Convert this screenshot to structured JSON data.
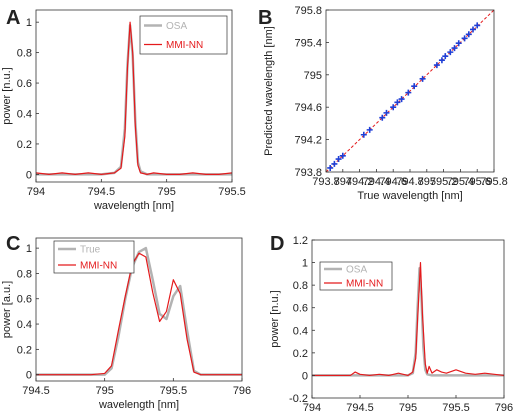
{
  "colors": {
    "osa": "#b3b3b3",
    "nn": "#e41a1c",
    "marker": "#1f3fd6",
    "fit": "#e41a1c"
  },
  "chart_data": [
    {
      "panel": "A",
      "type": "line",
      "xlabel": "wavelength [nm]",
      "ylabel": "power [n.u.]",
      "xlim": [
        794,
        795.5
      ],
      "ylim": [
        -0.05,
        1.08
      ],
      "xticks": [
        794,
        794.5,
        795,
        795.5
      ],
      "xtick_labels": [
        "794",
        "794.5",
        "795",
        "795.5"
      ],
      "yticks": [
        0,
        0.2,
        0.4,
        0.6,
        0.8,
        1
      ],
      "ytick_labels": [
        "0",
        "0.2",
        "0.4",
        "0.6",
        "0.8",
        "1"
      ],
      "legend": {
        "placement": "top-right",
        "entries": [
          "OSA",
          "MMI-NN"
        ]
      },
      "series": [
        {
          "name": "OSA",
          "color": "#b3b3b3",
          "width": 2.5,
          "x": [
            794,
            794.1,
            794.2,
            794.3,
            794.4,
            794.5,
            794.6,
            794.65,
            794.68,
            794.7,
            794.72,
            794.74,
            794.76,
            794.78,
            794.8,
            794.85,
            794.9,
            795,
            795.1,
            795.2,
            795.3,
            795.4,
            795.5
          ],
          "y": [
            0,
            0,
            0,
            0,
            0,
            0,
            0.01,
            0.05,
            0.3,
            0.72,
            0.98,
            0.78,
            0.35,
            0.08,
            0.02,
            0,
            0,
            0,
            0,
            0,
            0,
            0,
            0
          ]
        },
        {
          "name": "MMI-NN",
          "color": "#e41a1c",
          "width": 1.2,
          "x": [
            794,
            794.1,
            794.2,
            794.3,
            794.4,
            794.5,
            794.6,
            794.65,
            794.68,
            794.7,
            794.72,
            794.74,
            794.76,
            794.78,
            794.8,
            794.85,
            794.9,
            795,
            795.1,
            795.2,
            795.3,
            795.4,
            795.5
          ],
          "y": [
            0.01,
            0,
            0.01,
            0,
            0.01,
            0,
            0.01,
            0.04,
            0.25,
            0.7,
            1.0,
            0.8,
            0.32,
            0.06,
            0.01,
            0,
            0.01,
            0,
            0,
            0.01,
            0,
            0,
            0.01
          ]
        }
      ]
    },
    {
      "panel": "B",
      "type": "scatter",
      "xlabel": "True wavelength [nm]",
      "ylabel": "Predicted wavelength [nm]",
      "xlim": [
        793.8,
        795.8
      ],
      "ylim": [
        793.8,
        795.8
      ],
      "xticks": [
        793.8,
        794,
        794.2,
        794.4,
        794.6,
        794.8,
        795,
        795.2,
        795.4,
        795.6,
        795.8
      ],
      "xtick_labels": [
        "793.8",
        "794",
        "794.2",
        "794.4",
        "794.6",
        "794.8",
        "795",
        "795.2",
        "795.4",
        "795.6",
        "795.8"
      ],
      "yticks": [
        793.8,
        794.2,
        794.6,
        795,
        795.4,
        795.8
      ],
      "ytick_labels": [
        "793.8",
        "794.2",
        "794.6",
        "795",
        "795.4",
        "795.8"
      ],
      "fit_line": {
        "x": [
          793.8,
          795.8
        ],
        "y": [
          793.8,
          795.8
        ]
      },
      "points": {
        "x": [
          793.85,
          793.9,
          793.95,
          794.0,
          794.25,
          794.32,
          794.47,
          794.52,
          794.6,
          794.65,
          794.7,
          794.78,
          794.85,
          794.95,
          795.12,
          795.18,
          795.22,
          795.28,
          795.33,
          795.38,
          795.45,
          795.5,
          795.55,
          795.6
        ],
        "y": [
          793.85,
          793.9,
          793.96,
          794.0,
          794.26,
          794.32,
          794.47,
          794.53,
          794.6,
          794.66,
          794.7,
          794.78,
          794.86,
          794.95,
          795.12,
          795.18,
          795.23,
          795.28,
          795.33,
          795.39,
          795.45,
          795.5,
          795.56,
          795.61
        ]
      }
    },
    {
      "panel": "C",
      "type": "line",
      "xlabel": "wavelength [nm]",
      "ylabel": "power [a.u.]",
      "xlim": [
        794.5,
        796
      ],
      "ylim": [
        -0.05,
        1.08
      ],
      "xticks": [
        794.5,
        795,
        795.5,
        796
      ],
      "xtick_labels": [
        "794.5",
        "795",
        "795.5",
        "796"
      ],
      "yticks": [
        0,
        0.2,
        0.4,
        0.6,
        0.8,
        1
      ],
      "ytick_labels": [
        "0",
        "0.2",
        "0.4",
        "0.6",
        "0.8",
        "1"
      ],
      "legend": {
        "placement": "top-left",
        "entries": [
          "True",
          "MMI-NN"
        ]
      },
      "series": [
        {
          "name": "True",
          "color": "#b3b3b3",
          "width": 2.5,
          "x": [
            794.5,
            794.6,
            794.7,
            794.8,
            794.9,
            795.0,
            795.05,
            795.1,
            795.15,
            795.2,
            795.25,
            795.3,
            795.35,
            795.4,
            795.45,
            795.5,
            795.55,
            795.6,
            795.65,
            795.7,
            795.8,
            795.9,
            796
          ],
          "y": [
            0,
            0,
            0,
            0,
            0,
            0,
            0.05,
            0.3,
            0.6,
            0.85,
            0.97,
            1.0,
            0.75,
            0.48,
            0.44,
            0.62,
            0.7,
            0.35,
            0.03,
            0,
            0,
            0,
            0
          ]
        },
        {
          "name": "MMI-NN",
          "color": "#e41a1c",
          "width": 1.2,
          "x": [
            794.5,
            794.6,
            794.7,
            794.8,
            794.9,
            795.0,
            795.05,
            795.1,
            795.15,
            795.2,
            795.25,
            795.3,
            795.35,
            795.4,
            795.45,
            795.5,
            795.55,
            795.6,
            795.65,
            795.7,
            795.8,
            795.9,
            796
          ],
          "y": [
            0,
            0,
            0,
            0,
            0,
            0.01,
            0.07,
            0.35,
            0.62,
            0.87,
            0.96,
            0.93,
            0.65,
            0.42,
            0.5,
            0.75,
            0.64,
            0.28,
            0.02,
            0,
            0,
            0,
            0
          ]
        }
      ]
    },
    {
      "panel": "D",
      "type": "line",
      "xlabel": "wavelength [nm]",
      "ylabel": "power [n.u.]",
      "xlim": [
        794,
        796
      ],
      "ylim": [
        -0.2,
        1.2
      ],
      "xticks": [
        794,
        794.5,
        795,
        795.5,
        796
      ],
      "xtick_labels": [
        "794",
        "794.5",
        "795",
        "795.5",
        "796"
      ],
      "yticks": [
        -0.2,
        0,
        0.2,
        0.4,
        0.6,
        0.8,
        1,
        1.2
      ],
      "ytick_labels": [
        "-0.2",
        "0",
        "0.2",
        "0.4",
        "0.6",
        "0.8",
        "1",
        "1.2"
      ],
      "legend": {
        "placement": "top-left",
        "entries": [
          "OSA",
          "MMI-NN"
        ]
      },
      "series": [
        {
          "name": "OSA",
          "color": "#b3b3b3",
          "width": 2.5,
          "x": [
            794,
            794.2,
            794.4,
            794.6,
            794.8,
            795.0,
            795.05,
            795.08,
            795.1,
            795.12,
            795.14,
            795.16,
            795.18,
            795.2,
            795.25,
            795.3,
            795.4,
            795.5,
            795.6,
            795.8,
            796
          ],
          "y": [
            0,
            0,
            0,
            0,
            0,
            0,
            0.02,
            0.2,
            0.6,
            0.95,
            0.7,
            0.25,
            0.05,
            0.01,
            0,
            0,
            0,
            0,
            0,
            0,
            0
          ]
        },
        {
          "name": "MMI-NN",
          "color": "#e41a1c",
          "width": 1.2,
          "x": [
            794,
            794.1,
            794.2,
            794.3,
            794.4,
            794.45,
            794.5,
            794.6,
            794.7,
            794.8,
            794.9,
            795.0,
            795.05,
            795.08,
            795.1,
            795.13,
            795.15,
            795.18,
            795.2,
            795.22,
            795.25,
            795.3,
            795.35,
            795.4,
            795.5,
            795.6,
            795.7,
            795.8,
            795.9,
            796
          ],
          "y": [
            0,
            0,
            0,
            0,
            0,
            0.03,
            0.01,
            0,
            0.01,
            0,
            0.02,
            0,
            0.03,
            0.15,
            0.5,
            1.0,
            0.55,
            0.1,
            0.02,
            0.08,
            0.02,
            0.05,
            0.03,
            0.02,
            0.05,
            0.02,
            0.01,
            0.02,
            0.01,
            0
          ]
        }
      ]
    }
  ]
}
